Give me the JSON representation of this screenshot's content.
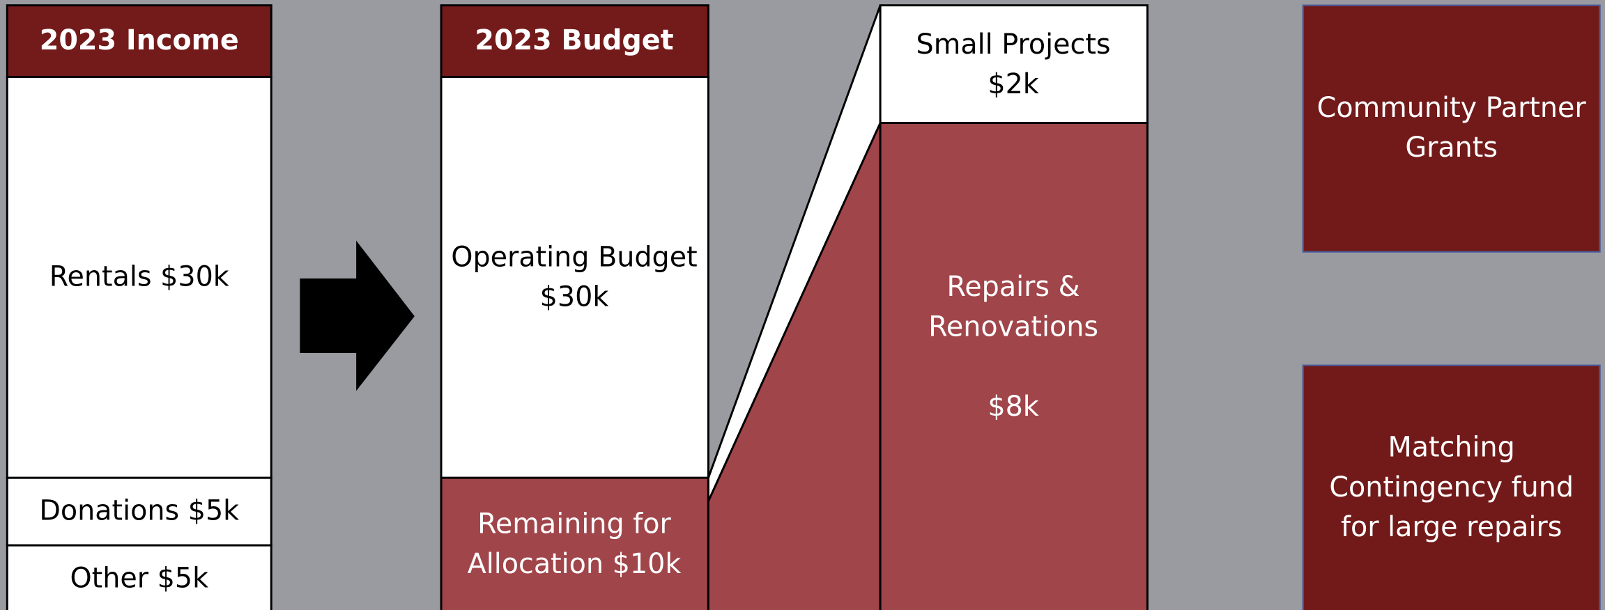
{
  "income": {
    "title": "2023 Income",
    "items": [
      "Rentals $30k",
      "Donations $5k",
      "Other $5k"
    ]
  },
  "budget": {
    "title": "2023 Budget",
    "operating": [
      "Operating Budget",
      "$30k"
    ],
    "remaining": [
      "Remaining for",
      "Allocation $10k"
    ]
  },
  "allocation": {
    "small_projects": [
      "Small Projects",
      "$2k"
    ],
    "repairs": [
      "Repairs &",
      "Renovations",
      "$8k"
    ]
  },
  "funds": [
    [
      "Community Partner",
      "Grants"
    ],
    [
      "Matching",
      "Contingency fund",
      "for large repairs"
    ]
  ]
}
